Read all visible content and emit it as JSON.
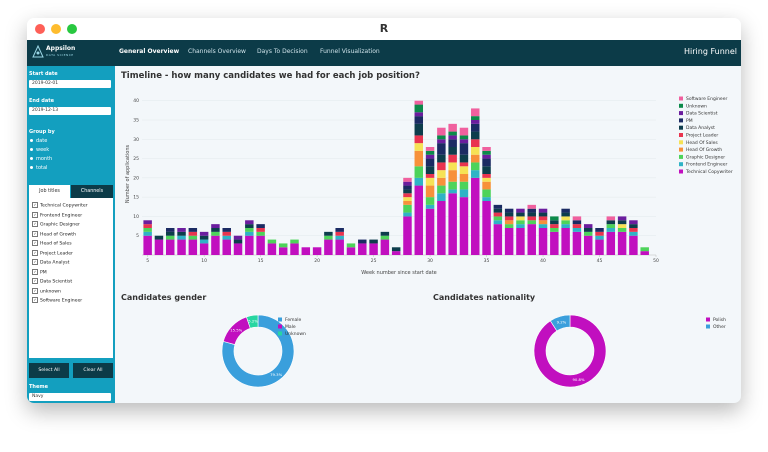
{
  "window": {
    "title": "R"
  },
  "navbar": {
    "brand": "Appsilon",
    "brand_sub": "DATA SCIENCE",
    "tabs": [
      "General Overview",
      "Channels Overview",
      "Days To Decision",
      "Funnel Visualization"
    ],
    "app_title": "Hiring Funnel"
  },
  "sidebar": {
    "start_date_label": "Start date",
    "start_date": "2019-02-01",
    "end_date_label": "End date",
    "end_date": "2019-12-13",
    "group_by_label": "Group by",
    "group_by_options": [
      "date",
      "week",
      "month",
      "total"
    ],
    "tabs": [
      "Job titles",
      "Channels"
    ],
    "job_titles": [
      "Technical Copywriter",
      "Frontend Engineer",
      "Graphic Designer",
      "Head of Growth",
      "Head of Sales",
      "Project Leader",
      "Data Analyst",
      "PM",
      "Data Scientist",
      "unknown",
      "Software Engineer"
    ],
    "select_all": "Select All",
    "clear_all": "Clear All",
    "theme_label": "Theme",
    "theme": "Navy"
  },
  "chart_data": [
    {
      "type": "stacked_bar",
      "title": "Timeline - how many candidates we had for each job position?",
      "x_label": "Week number since start date",
      "y_label": "Number of applications",
      "x": [
        5,
        6,
        7,
        8,
        9,
        10,
        11,
        12,
        13,
        14,
        15,
        16,
        17,
        18,
        19,
        20,
        21,
        22,
        23,
        24,
        25,
        26,
        27,
        28,
        29,
        30,
        31,
        32,
        33,
        34,
        35,
        36,
        37,
        38,
        39,
        40,
        41,
        42,
        43,
        44,
        45,
        46,
        47,
        48,
        49
      ],
      "xlim": [
        4.5,
        50
      ],
      "xticks": [
        5,
        10,
        15,
        20,
        25,
        30,
        35,
        40,
        45,
        50
      ],
      "ylim": [
        0,
        42
      ],
      "yticks": [
        5,
        10,
        15,
        20,
        25,
        30,
        35,
        40
      ],
      "grid": true,
      "legend": "right",
      "series": [
        {
          "name": "Technical Copywriter",
          "color": "#c10fbf",
          "values": [
            5,
            4,
            4,
            4,
            4,
            3,
            5,
            4,
            3,
            5,
            5,
            3,
            2,
            3,
            2,
            2,
            4,
            4,
            2,
            3,
            3,
            4,
            1,
            10,
            18,
            12,
            14,
            16,
            15,
            20,
            14,
            8,
            7,
            7,
            8,
            7,
            6,
            7,
            6,
            5,
            4,
            6,
            6,
            5,
            1
          ]
        },
        {
          "name": "Frontend Engineer",
          "color": "#2fb3c6",
          "values": [
            1,
            0,
            0,
            1,
            0,
            1,
            0,
            1,
            0,
            1,
            0,
            0,
            0,
            0,
            0,
            0,
            0,
            1,
            0,
            0,
            0,
            0,
            0,
            1,
            2,
            1,
            2,
            1,
            2,
            2,
            1,
            1,
            0,
            1,
            0,
            1,
            0,
            1,
            1,
            0,
            1,
            1,
            0,
            1,
            0
          ]
        },
        {
          "name": "Graphic Designer",
          "color": "#4dd35a",
          "values": [
            1,
            0,
            1,
            0,
            1,
            0,
            1,
            0,
            0,
            1,
            1,
            1,
            1,
            1,
            0,
            0,
            1,
            0,
            1,
            0,
            0,
            1,
            0,
            2,
            3,
            2,
            2,
            2,
            2,
            2,
            2,
            1,
            1,
            1,
            1,
            0,
            1,
            1,
            0,
            1,
            0,
            1,
            1,
            0,
            1
          ]
        },
        {
          "name": "Head Of Growth",
          "color": "#f7913a",
          "values": [
            0,
            0,
            0,
            0,
            0,
            0,
            0,
            0,
            0,
            0,
            0,
            0,
            0,
            0,
            0,
            0,
            0,
            0,
            0,
            0,
            0,
            0,
            0,
            1,
            4,
            3,
            2,
            3,
            2,
            2,
            2,
            0,
            1,
            0,
            0,
            1,
            0,
            0,
            0,
            0,
            0,
            0,
            0,
            0,
            0
          ]
        },
        {
          "name": "Head Of Sales",
          "color": "#f6e255",
          "values": [
            0,
            0,
            0,
            0,
            0,
            0,
            0,
            0,
            0,
            0,
            0,
            0,
            0,
            0,
            0,
            0,
            0,
            0,
            0,
            0,
            0,
            0,
            0,
            1,
            2,
            2,
            2,
            2,
            2,
            2,
            1,
            0,
            0,
            1,
            0,
            0,
            0,
            1,
            0,
            0,
            0,
            0,
            1,
            0,
            0
          ]
        },
        {
          "name": "Project Leader",
          "color": "#e9344f",
          "values": [
            1,
            0,
            0,
            0,
            1,
            0,
            0,
            1,
            0,
            0,
            1,
            0,
            0,
            0,
            0,
            0,
            0,
            1,
            0,
            0,
            0,
            0,
            0,
            1,
            2,
            1,
            2,
            2,
            1,
            2,
            1,
            1,
            1,
            0,
            1,
            1,
            1,
            0,
            1,
            0,
            1,
            0,
            0,
            1,
            0
          ]
        },
        {
          "name": "Data Analyst",
          "color": "#0d3d4c",
          "values": [
            0,
            1,
            1,
            1,
            0,
            1,
            1,
            0,
            1,
            1,
            0,
            0,
            0,
            0,
            0,
            0,
            1,
            0,
            0,
            0,
            1,
            1,
            1,
            1,
            3,
            2,
            2,
            2,
            2,
            2,
            2,
            1,
            1,
            1,
            1,
            1,
            1,
            1,
            0,
            1,
            0,
            1,
            1,
            1,
            0
          ]
        },
        {
          "name": "PM",
          "color": "#1b2b63",
          "values": [
            0,
            0,
            1,
            0,
            1,
            0,
            0,
            1,
            0,
            0,
            1,
            0,
            0,
            0,
            0,
            0,
            0,
            1,
            0,
            1,
            0,
            0,
            0,
            1,
            2,
            2,
            3,
            2,
            3,
            2,
            2,
            1,
            1,
            0,
            1,
            0,
            0,
            1,
            1,
            0,
            1,
            0,
            0,
            0,
            0
          ]
        },
        {
          "name": "Data Scientist",
          "color": "#6b1d9e",
          "values": [
            1,
            0,
            0,
            1,
            0,
            1,
            1,
            0,
            1,
            1,
            0,
            0,
            0,
            0,
            0,
            0,
            0,
            0,
            0,
            0,
            0,
            0,
            0,
            1,
            1,
            1,
            1,
            1,
            1,
            1,
            1,
            0,
            0,
            1,
            0,
            1,
            0,
            0,
            0,
            1,
            0,
            0,
            1,
            1,
            0
          ]
        },
        {
          "name": "Unknown",
          "color": "#0c8a4a",
          "values": [
            0,
            0,
            0,
            0,
            0,
            0,
            0,
            0,
            0,
            0,
            0,
            0,
            0,
            0,
            0,
            0,
            0,
            0,
            0,
            0,
            0,
            0,
            0,
            0,
            2,
            1,
            1,
            1,
            1,
            1,
            1,
            0,
            0,
            0,
            0,
            0,
            1,
            0,
            0,
            0,
            0,
            0,
            0,
            0,
            0
          ]
        },
        {
          "name": "Software Engineer",
          "color": "#f0609e",
          "values": [
            0,
            0,
            0,
            0,
            0,
            0,
            0,
            0,
            0,
            0,
            0,
            0,
            0,
            0,
            0,
            0,
            0,
            0,
            0,
            0,
            0,
            0,
            0,
            1,
            1,
            1,
            2,
            2,
            2,
            2,
            1,
            0,
            0,
            0,
            1,
            0,
            0,
            0,
            1,
            0,
            0,
            1,
            0,
            0,
            0
          ]
        }
      ]
    },
    {
      "type": "donut",
      "title": "Candidates gender",
      "categories": [
        "Female",
        "Male",
        "Unknown"
      ],
      "values": [
        79.3,
        15.5,
        5.2
      ],
      "value_labels": [
        "79.3%",
        "15.5%",
        "5.2%"
      ],
      "colors": [
        "#3a9fdc",
        "#c10fbf",
        "#27d6a1"
      ],
      "legend": "right"
    },
    {
      "type": "donut",
      "title": "Candidates nationality",
      "categories": [
        "Polish",
        "Other"
      ],
      "values": [
        90.8,
        9.2
      ],
      "value_labels": [
        "90.8%",
        "9.2%"
      ],
      "colors": [
        "#c10fbf",
        "#3a9fdc"
      ],
      "legend": "right"
    }
  ]
}
